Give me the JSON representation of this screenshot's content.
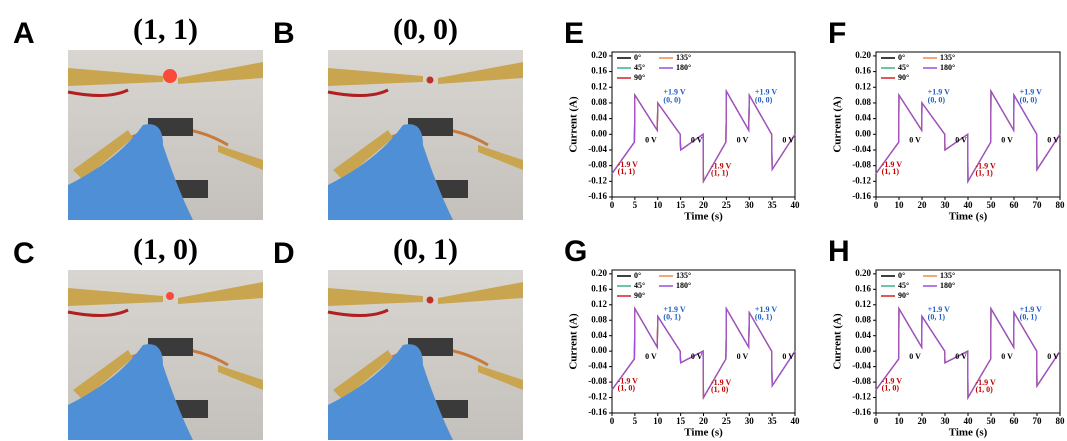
{
  "photo_panels": [
    {
      "letter": "A",
      "caption": "(1, 1)"
    },
    {
      "letter": "B",
      "caption": "(0, 0)"
    },
    {
      "letter": "C",
      "caption": "(1, 0)"
    },
    {
      "letter": "D",
      "caption": "(0, 1)"
    }
  ],
  "chart_data": [
    {
      "type": "line",
      "panel": "E",
      "xlabel": "Time (s)",
      "ylabel": "Current (A)",
      "legend": "upper left",
      "x": [
        0,
        4.9,
        5,
        9.9,
        10,
        14.9,
        15,
        19.9,
        20,
        24.9,
        25,
        29.9,
        30,
        34.9,
        35,
        40
      ],
      "series": [
        {
          "name": "0°",
          "color": "#000000",
          "values": [
            -0.1,
            -0.02,
            0.1,
            0.01,
            0.08,
            0.0,
            -0.04,
            0.0,
            -0.12,
            -0.02,
            0.11,
            0.01,
            0.1,
            0.0,
            -0.09,
            0.0
          ]
        },
        {
          "name": "45°",
          "color": "#3cb38a",
          "values": [
            -0.1,
            -0.02,
            0.1,
            0.01,
            0.08,
            0.0,
            -0.04,
            0.0,
            -0.12,
            -0.02,
            0.11,
            0.01,
            0.1,
            0.0,
            -0.09,
            0.0
          ]
        },
        {
          "name": "90°",
          "color": "#d62020",
          "values": [
            -0.1,
            -0.02,
            0.1,
            0.01,
            0.08,
            0.0,
            -0.04,
            0.0,
            -0.12,
            -0.02,
            0.11,
            0.01,
            0.1,
            0.0,
            -0.09,
            0.0
          ]
        },
        {
          "name": "135°",
          "color": "#f08a4b",
          "values": [
            -0.1,
            -0.02,
            0.1,
            0.01,
            0.08,
            0.0,
            -0.04,
            0.0,
            -0.12,
            -0.02,
            0.11,
            0.01,
            0.1,
            0.0,
            -0.09,
            0.0
          ]
        },
        {
          "name": "180°",
          "color": "#9b4fd8",
          "values": [
            -0.1,
            -0.02,
            0.1,
            0.01,
            0.08,
            0.0,
            -0.04,
            0.0,
            -0.12,
            -0.02,
            0.11,
            0.01,
            0.1,
            0.0,
            -0.09,
            0.0
          ]
        }
      ],
      "annotations": [
        {
          "text": "-1.9 V",
          "color": "#c00000"
        },
        {
          "text": "(1, 1)",
          "color": "#c00000"
        },
        {
          "text": "0 V",
          "color": "#000000"
        },
        {
          "text": "+1.9 V",
          "color": "#1f5fbf"
        },
        {
          "text": "(0, 0)",
          "color": "#1f5fbf"
        },
        {
          "text": "0 V",
          "color": "#000000"
        },
        {
          "text": "-1.9 V",
          "color": "#c00000"
        },
        {
          "text": "(1, 1)",
          "color": "#c00000"
        },
        {
          "text": "0 V",
          "color": "#000000"
        },
        {
          "text": "+1.9 V",
          "color": "#1f5fbf"
        },
        {
          "text": "(0, 0)",
          "color": "#1f5fbf"
        },
        {
          "text": "0 V",
          "color": "#000000"
        }
      ],
      "xlim": [
        0,
        40
      ],
      "xticks": [
        0,
        5,
        10,
        15,
        20,
        25,
        30,
        35,
        40
      ],
      "ylim": [
        -0.16,
        0.21
      ],
      "yticks": [
        {
          "value": -0.16,
          "label": "-0.16"
        },
        {
          "value": -0.12,
          "label": "-0.12"
        },
        {
          "value": -0.08,
          "label": "-0.08"
        },
        {
          "value": -0.04,
          "label": "-0.04"
        },
        {
          "value": 0,
          "label": "0.00"
        },
        {
          "value": 0.04,
          "label": "0.04"
        },
        {
          "value": 0.08,
          "label": "0.08"
        },
        {
          "value": 0.12,
          "label": "0.12"
        },
        {
          "value": 0.16,
          "label": "0.16"
        },
        {
          "value": 0.2,
          "label": "0.20"
        }
      ]
    },
    {
      "type": "line",
      "panel": "F",
      "xlabel": "Time (s)",
      "ylabel": "Current (A)",
      "legend": "upper left",
      "x": [
        0,
        9.9,
        10,
        19.9,
        20,
        29.9,
        30,
        39.9,
        40,
        49.9,
        50,
        59.9,
        60,
        69.9,
        70,
        80
      ],
      "series": [
        {
          "name": "0°",
          "color": "#000000",
          "values": [
            -0.1,
            -0.02,
            0.1,
            0.01,
            0.08,
            0.0,
            -0.04,
            0.0,
            -0.12,
            -0.02,
            0.11,
            0.01,
            0.1,
            0.0,
            -0.09,
            0.0
          ]
        },
        {
          "name": "45°",
          "color": "#3cb38a",
          "values": [
            -0.1,
            -0.02,
            0.1,
            0.01,
            0.08,
            0.0,
            -0.04,
            0.0,
            -0.12,
            -0.02,
            0.11,
            0.01,
            0.1,
            0.0,
            -0.09,
            0.0
          ]
        },
        {
          "name": "90°",
          "color": "#d62020",
          "values": [
            -0.1,
            -0.02,
            0.1,
            0.01,
            0.08,
            0.0,
            -0.04,
            0.0,
            -0.12,
            -0.02,
            0.11,
            0.01,
            0.1,
            0.0,
            -0.09,
            0.0
          ]
        },
        {
          "name": "135°",
          "color": "#f08a4b",
          "values": [
            -0.1,
            -0.02,
            0.1,
            0.01,
            0.08,
            0.0,
            -0.04,
            0.0,
            -0.12,
            -0.02,
            0.11,
            0.01,
            0.1,
            0.0,
            -0.09,
            0.0
          ]
        },
        {
          "name": "180°",
          "color": "#9b4fd8",
          "values": [
            -0.1,
            -0.02,
            0.1,
            0.01,
            0.08,
            0.0,
            -0.04,
            0.0,
            -0.12,
            -0.02,
            0.11,
            0.01,
            0.1,
            0.0,
            -0.09,
            0.0
          ]
        }
      ],
      "annotations": [
        {
          "text": "-1.9 V",
          "color": "#c00000"
        },
        {
          "text": "(1, 1)",
          "color": "#c00000"
        },
        {
          "text": "0 V",
          "color": "#000000"
        },
        {
          "text": "+1.9 V",
          "color": "#1f5fbf"
        },
        {
          "text": "(0, 0)",
          "color": "#1f5fbf"
        },
        {
          "text": "0 V",
          "color": "#000000"
        },
        {
          "text": "-1.9 V",
          "color": "#c00000"
        },
        {
          "text": "(1, 1)",
          "color": "#c00000"
        },
        {
          "text": "0 V",
          "color": "#000000"
        },
        {
          "text": "+1.9 V",
          "color": "#1f5fbf"
        },
        {
          "text": "(0, 0)",
          "color": "#1f5fbf"
        },
        {
          "text": "0 V",
          "color": "#000000"
        }
      ],
      "xlim": [
        0,
        80
      ],
      "xticks": [
        0,
        10,
        20,
        30,
        40,
        50,
        60,
        70,
        80
      ],
      "ylim": [
        -0.16,
        0.21
      ],
      "yticks": [
        {
          "value": -0.16,
          "label": "-0.16"
        },
        {
          "value": -0.12,
          "label": "-0.12"
        },
        {
          "value": -0.08,
          "label": "-0.08"
        },
        {
          "value": -0.04,
          "label": "-0.04"
        },
        {
          "value": 0,
          "label": "0.00"
        },
        {
          "value": 0.04,
          "label": "0.04"
        },
        {
          "value": 0.08,
          "label": "0.08"
        },
        {
          "value": 0.12,
          "label": "0.12"
        },
        {
          "value": 0.16,
          "label": "0.16"
        },
        {
          "value": 0.2,
          "label": "0.20"
        }
      ]
    },
    {
      "type": "line",
      "panel": "G",
      "xlabel": "Time (s)",
      "ylabel": "Current (A)",
      "legend": "upper left",
      "x": [
        0,
        4.9,
        5,
        9.9,
        10,
        14.9,
        15,
        19.9,
        20,
        24.9,
        25,
        29.9,
        30,
        34.9,
        35,
        40
      ],
      "series": [
        {
          "name": "0°",
          "color": "#000000",
          "values": [
            -0.1,
            -0.02,
            0.11,
            0.01,
            0.09,
            0.0,
            -0.03,
            0.0,
            -0.12,
            -0.02,
            0.11,
            0.01,
            0.1,
            0.0,
            -0.09,
            0.0
          ]
        },
        {
          "name": "45°",
          "color": "#3cb38a",
          "values": [
            -0.1,
            -0.02,
            0.11,
            0.01,
            0.09,
            0.0,
            -0.03,
            0.0,
            -0.12,
            -0.02,
            0.11,
            0.01,
            0.1,
            0.0,
            -0.09,
            0.0
          ]
        },
        {
          "name": "90°",
          "color": "#d62020",
          "values": [
            -0.1,
            -0.02,
            0.11,
            0.01,
            0.09,
            0.0,
            -0.03,
            0.0,
            -0.12,
            -0.02,
            0.11,
            0.01,
            0.1,
            0.0,
            -0.09,
            0.0
          ]
        },
        {
          "name": "135°",
          "color": "#f08a4b",
          "values": [
            -0.1,
            -0.02,
            0.11,
            0.01,
            0.09,
            0.0,
            -0.03,
            0.0,
            -0.12,
            -0.02,
            0.11,
            0.01,
            0.1,
            0.0,
            -0.09,
            0.0
          ]
        },
        {
          "name": "180°",
          "color": "#9b4fd8",
          "values": [
            -0.1,
            -0.02,
            0.11,
            0.01,
            0.09,
            0.0,
            -0.03,
            0.0,
            -0.12,
            -0.02,
            0.11,
            0.01,
            0.1,
            0.0,
            -0.09,
            0.0
          ]
        }
      ],
      "annotations": [
        {
          "text": "-1.9 V",
          "color": "#c00000"
        },
        {
          "text": "(1, 0)",
          "color": "#c00000"
        },
        {
          "text": "0 V",
          "color": "#000000"
        },
        {
          "text": "+1.9 V",
          "color": "#1f5fbf"
        },
        {
          "text": "(0, 1)",
          "color": "#1f5fbf"
        },
        {
          "text": "0 V",
          "color": "#000000"
        },
        {
          "text": "-1.9 V",
          "color": "#c00000"
        },
        {
          "text": "(1, 0)",
          "color": "#c00000"
        },
        {
          "text": "0 V",
          "color": "#000000"
        },
        {
          "text": "+1.9 V",
          "color": "#1f5fbf"
        },
        {
          "text": "(0, 1)",
          "color": "#1f5fbf"
        },
        {
          "text": "0 V",
          "color": "#000000"
        }
      ],
      "xlim": [
        0,
        40
      ],
      "xticks": [
        0,
        5,
        10,
        15,
        20,
        25,
        30,
        35,
        40
      ],
      "ylim": [
        -0.16,
        0.21
      ],
      "yticks": [
        {
          "value": -0.16,
          "label": "-0.16"
        },
        {
          "value": -0.12,
          "label": "-0.12"
        },
        {
          "value": -0.08,
          "label": "-0.08"
        },
        {
          "value": -0.04,
          "label": "-0.04"
        },
        {
          "value": 0,
          "label": "0.00"
        },
        {
          "value": 0.04,
          "label": "0.04"
        },
        {
          "value": 0.08,
          "label": "0.08"
        },
        {
          "value": 0.12,
          "label": "0.12"
        },
        {
          "value": 0.16,
          "label": "0.16"
        },
        {
          "value": 0.2,
          "label": "0.20"
        }
      ]
    },
    {
      "type": "line",
      "panel": "H",
      "xlabel": "Time (s)",
      "ylabel": "Current (A)",
      "legend": "upper left",
      "x": [
        0,
        9.9,
        10,
        19.9,
        20,
        29.9,
        30,
        39.9,
        40,
        49.9,
        50,
        59.9,
        60,
        69.9,
        70,
        80
      ],
      "series": [
        {
          "name": "0°",
          "color": "#000000",
          "values": [
            -0.1,
            -0.02,
            0.11,
            0.01,
            0.09,
            0.0,
            -0.03,
            0.0,
            -0.12,
            -0.02,
            0.11,
            0.01,
            0.1,
            0.0,
            -0.09,
            0.0
          ]
        },
        {
          "name": "45°",
          "color": "#3cb38a",
          "values": [
            -0.1,
            -0.02,
            0.11,
            0.01,
            0.09,
            0.0,
            -0.03,
            0.0,
            -0.12,
            -0.02,
            0.11,
            0.01,
            0.1,
            0.0,
            -0.09,
            0.0
          ]
        },
        {
          "name": "90°",
          "color": "#d62020",
          "values": [
            -0.1,
            -0.02,
            0.11,
            0.01,
            0.09,
            0.0,
            -0.03,
            0.0,
            -0.12,
            -0.02,
            0.11,
            0.01,
            0.1,
            0.0,
            -0.09,
            0.0
          ]
        },
        {
          "name": "135°",
          "color": "#f08a4b",
          "values": [
            -0.1,
            -0.02,
            0.11,
            0.01,
            0.09,
            0.0,
            -0.03,
            0.0,
            -0.12,
            -0.02,
            0.11,
            0.01,
            0.1,
            0.0,
            -0.09,
            0.0
          ]
        },
        {
          "name": "180°",
          "color": "#9b4fd8",
          "values": [
            -0.1,
            -0.02,
            0.11,
            0.01,
            0.09,
            0.0,
            -0.03,
            0.0,
            -0.12,
            -0.02,
            0.11,
            0.01,
            0.1,
            0.0,
            -0.09,
            0.0
          ]
        }
      ],
      "annotations": [
        {
          "text": "-1.9 V",
          "color": "#c00000"
        },
        {
          "text": "(1, 0)",
          "color": "#c00000"
        },
        {
          "text": "0 V",
          "color": "#000000"
        },
        {
          "text": "+1.9 V",
          "color": "#1f5fbf"
        },
        {
          "text": "(0, 1)",
          "color": "#1f5fbf"
        },
        {
          "text": "0 V",
          "color": "#000000"
        },
        {
          "text": "-1.9 V",
          "color": "#c00000"
        },
        {
          "text": "(1, 0)",
          "color": "#c00000"
        },
        {
          "text": "0 V",
          "color": "#000000"
        },
        {
          "text": "+1.9 V",
          "color": "#1f5fbf"
        },
        {
          "text": "(0, 1)",
          "color": "#1f5fbf"
        },
        {
          "text": "0 V",
          "color": "#000000"
        }
      ],
      "xlim": [
        0,
        80
      ],
      "xticks": [
        0,
        10,
        20,
        30,
        40,
        50,
        60,
        70,
        80
      ],
      "ylim": [
        -0.16,
        0.21
      ],
      "yticks": [
        {
          "value": -0.16,
          "label": "-0.16"
        },
        {
          "value": -0.12,
          "label": "-0.12"
        },
        {
          "value": -0.08,
          "label": "-0.08"
        },
        {
          "value": -0.04,
          "label": "-0.04"
        },
        {
          "value": 0,
          "label": "0.00"
        },
        {
          "value": 0.04,
          "label": "0.04"
        },
        {
          "value": 0.08,
          "label": "0.08"
        },
        {
          "value": 0.12,
          "label": "0.12"
        },
        {
          "value": 0.16,
          "label": "0.16"
        },
        {
          "value": 0.2,
          "label": "0.20"
        }
      ]
    }
  ]
}
